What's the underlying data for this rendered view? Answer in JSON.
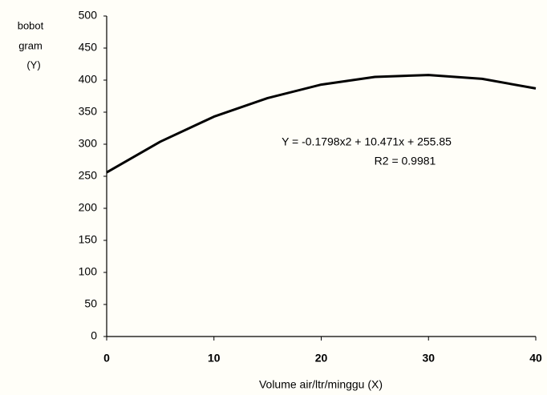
{
  "chart_data": {
    "type": "line",
    "y_label": [
      "bobot",
      "gram",
      "(Y)"
    ],
    "x_label": "Volume air/ltr/minggu  (X)",
    "annotations": [
      "Y = -0.1798x2 + 10.471x + 255.85",
      "R2 = 0.9981"
    ],
    "x": [
      0,
      5,
      10,
      15,
      20,
      25,
      30,
      35,
      40
    ],
    "series": [
      {
        "color": "#000000",
        "values": [
          256,
          304,
          343,
          372,
          393,
          405,
          408,
          402,
          387
        ]
      }
    ],
    "xlim": [
      0,
      40
    ],
    "xticks": [
      0,
      10,
      20,
      30,
      40
    ],
    "ylim": [
      0,
      500
    ],
    "yticks": [
      0,
      50,
      100,
      150,
      200,
      250,
      300,
      350,
      400,
      450,
      500
    ]
  }
}
